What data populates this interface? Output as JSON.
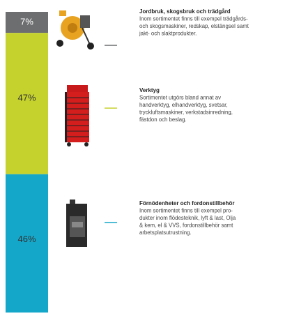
{
  "chart_data": {
    "type": "stacked-bar",
    "ylim": [
      0,
      100
    ],
    "series": [
      {
        "name": "Jordbruk, skogsbruk och trädgård",
        "color": "#6d6e70",
        "values": [
          7
        ],
        "value_labels": [
          "7%"
        ],
        "description": [
          "Inom sortimentet finns till exempel trädgårds-",
          "och skogsmaskiner, redskap, elstängsel samt",
          "jakt- och slaktprodukter."
        ]
      },
      {
        "name": "Verktyg",
        "color": "#c5d22e",
        "values": [
          47
        ],
        "value_labels": [
          "47%"
        ],
        "description": [
          "Sortimentet utgörs bland annat av",
          "handverktyg, elhandverktyg, svetsar,",
          "tryckluftsmaskiner, verkstadsinredning,",
          "fästdon och beslag."
        ]
      },
      {
        "name": "Förnödenheter och fordonstillbehör",
        "color": "#15a7c9",
        "values": [
          46
        ],
        "value_labels": [
          "46%"
        ],
        "description": [
          "Inom sortimentet finns till exempel pro-",
          "dukter inom flödesteknik, lyft & last, Olja",
          "& kem, el & VVS, fordonstillbehör samt",
          "arbetsplatsutrustning."
        ]
      }
    ]
  }
}
